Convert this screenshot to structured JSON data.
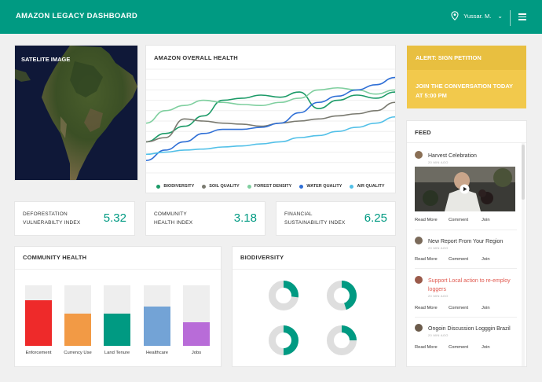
{
  "header": {
    "title": "AMAZON LEGACY DASHBOARD",
    "user": "Yussar. M.",
    "chevron": "⌄",
    "icons": [
      "location-pin-icon",
      "menu-icon"
    ]
  },
  "satellite": {
    "label": "SATELITE IMAGE"
  },
  "health_chart": {
    "title": "AMAZON OVERALL HEALTH",
    "chart_data": {
      "type": "line",
      "title": "AMAZON OVERALL HEALTH",
      "xlabel": "",
      "ylabel": "",
      "grid": true,
      "legend": "bottom",
      "x": [
        0,
        1,
        2,
        3,
        4,
        5,
        6,
        7,
        8,
        9,
        10,
        11,
        12,
        13
      ],
      "ylim": [
        0,
        100
      ],
      "series": [
        {
          "name": "BIODIVERSITY",
          "color": "#1b9a67",
          "values": [
            30,
            38,
            45,
            55,
            70,
            72,
            75,
            73,
            78,
            62,
            70,
            75,
            72,
            78
          ]
        },
        {
          "name": "SOIL QUALITY",
          "color": "#7a7a70",
          "values": [
            30,
            34,
            52,
            50,
            48,
            47,
            45,
            48,
            50,
            52,
            55,
            57,
            60,
            68
          ]
        },
        {
          "name": "FOREST DENSITY",
          "color": "#7fcf9f",
          "values": [
            48,
            60,
            65,
            70,
            68,
            66,
            65,
            68,
            72,
            80,
            82,
            80,
            76,
            80
          ]
        },
        {
          "name": "WATER QUALITY",
          "color": "#2f6fd6",
          "values": [
            12,
            22,
            30,
            38,
            42,
            42,
            44,
            48,
            58,
            68,
            74,
            80,
            85,
            92
          ]
        },
        {
          "name": "AIR QUALITY",
          "color": "#52c0e8",
          "values": [
            18,
            20,
            22,
            23,
            25,
            26,
            28,
            30,
            34,
            36,
            40,
            44,
            48,
            54
          ]
        }
      ]
    }
  },
  "alert": {
    "title": "ALERT: SIGN PETITION",
    "subtitle": "JOIN THE CONVERSATION TODAY AT 5:00 PM"
  },
  "metrics": [
    {
      "label_line1": "DEFORESTATION",
      "label_line2": "VULNERABILTY INDEX",
      "value": "5.32"
    },
    {
      "label_line1": "COMMUNITY",
      "label_line2": "HEALTH INDEX",
      "value": "3.18"
    },
    {
      "label_line1": "FINANCIAL",
      "label_line2": "SUSTAINABILITY INDEX",
      "value": "6.25"
    }
  ],
  "community": {
    "title": "COMMUNITY HEALTH",
    "chart_data": {
      "type": "bar",
      "title": "COMMUNITY HEALTH",
      "categories": [
        "Enforcement",
        "Currency Use",
        "Land Tenure",
        "Healthcare",
        "Jobs"
      ],
      "values": [
        75,
        53,
        53,
        65,
        39
      ],
      "colors": [
        "#ee2a2a",
        "#f29a45",
        "#009a82",
        "#73a3d6",
        "#b86cd8"
      ],
      "ylim": [
        0,
        100
      ]
    }
  },
  "biodiversity": {
    "title": "BIODIVERSITY",
    "chart_data": {
      "type": "pie",
      "title": "BIODIVERSITY",
      "values": [
        27,
        45,
        50,
        25
      ],
      "colors": [
        "#009a82",
        "#dedede"
      ]
    }
  },
  "feed": {
    "title": "FEED",
    "items": [
      {
        "title": "Harvest Celebration",
        "meta": "20 MIN AGO",
        "actions": [
          "Read More",
          "Comment",
          "Join"
        ]
      },
      {
        "title": "New Report From Your Region",
        "meta": "20 MIN AGO",
        "actions": [
          "Read More",
          "Comment",
          "Join"
        ]
      },
      {
        "title": "Support Local action to re-employ loggers",
        "meta": "20 MIN AGO",
        "actions": [
          "Read More",
          "Comment",
          "Join"
        ]
      },
      {
        "title": "Ongoin Discussion Logggin Brazil",
        "meta": "20 MIN AGO",
        "actions": [
          "Read More",
          "Comment",
          "Join"
        ]
      }
    ]
  }
}
